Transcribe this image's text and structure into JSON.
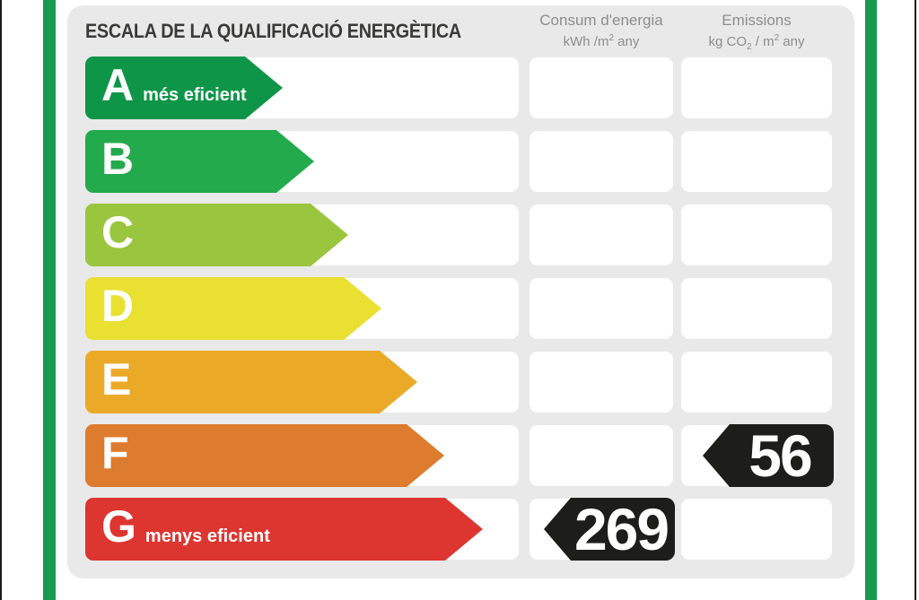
{
  "header": {
    "title": "ESCALA DE LA QUALIFICACIÓ ENERGÈTICA",
    "consum": {
      "label": "Consum d'energia",
      "unit_pre": "kWh /m",
      "unit_sup": "2",
      "unit_post": " any"
    },
    "emissions": {
      "label": "Emissions",
      "unit_p1": "kg CO",
      "unit_sub": "2",
      "unit_p2": " / m",
      "unit_sup": "2",
      "unit_p3": " any"
    }
  },
  "scale": {
    "rows": [
      {
        "letter": "A",
        "note": "més eficient",
        "color": "#0e9548",
        "arrow_width": 220,
        "consum": null,
        "emissions": null
      },
      {
        "letter": "B",
        "note": null,
        "color": "#23aa4c",
        "arrow_width": 255,
        "consum": null,
        "emissions": null
      },
      {
        "letter": "C",
        "note": null,
        "color": "#9ac53e",
        "arrow_width": 293,
        "consum": null,
        "emissions": null
      },
      {
        "letter": "D",
        "note": null,
        "color": "#e9e032",
        "arrow_width": 330,
        "consum": null,
        "emissions": null
      },
      {
        "letter": "E",
        "note": null,
        "color": "#eaaa28",
        "arrow_width": 370,
        "consum": null,
        "emissions": null
      },
      {
        "letter": "F",
        "note": null,
        "color": "#dd7b2e",
        "arrow_width": 400,
        "consum": null,
        "emissions": "56"
      },
      {
        "letter": "G",
        "note": "menys eficient",
        "color": "#dd3530",
        "arrow_width": 443,
        "consum": "269",
        "emissions": null
      }
    ]
  },
  "colors": {
    "frame_green": "#189b4e",
    "card_bg": "#e9e9e9",
    "tag_black": "#1d1d1b",
    "title_text": "#3a3a39",
    "header_text": "#8d8d8d"
  },
  "chart_data": {
    "type": "bar",
    "title": "ESCALA DE LA QUALIFICACIÓ ENERGÈTICA",
    "categories": [
      "A",
      "B",
      "C",
      "D",
      "E",
      "F",
      "G"
    ],
    "category_notes": {
      "A": "més eficient",
      "G": "menys eficient"
    },
    "bar_colors": [
      "#0e9548",
      "#23aa4c",
      "#9ac53e",
      "#e9e032",
      "#eaaa28",
      "#dd7b2e",
      "#dd3530"
    ],
    "series": [
      {
        "name": "Consum d'energia (kWh/m2 any)",
        "rating": "G",
        "value": 269
      },
      {
        "name": "Emissions (kg CO2/m2 any)",
        "rating": "F",
        "value": 56
      }
    ],
    "legend_position": "top",
    "grid": false
  }
}
